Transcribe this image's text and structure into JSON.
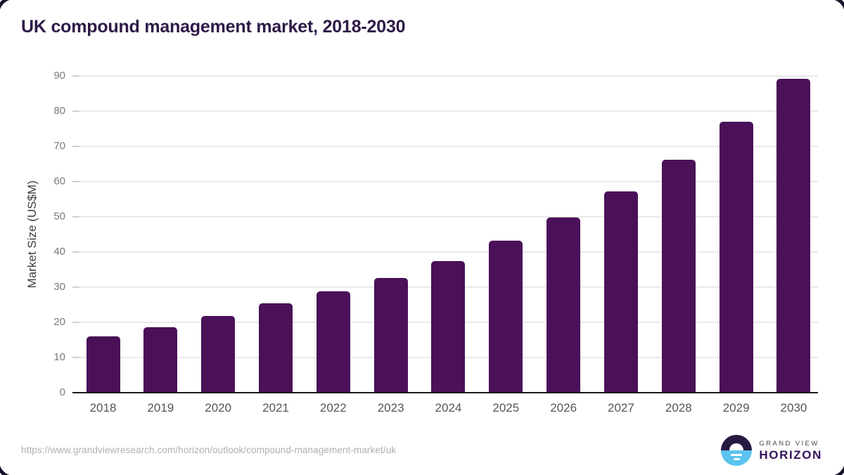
{
  "title": "UK compound management market, 2018-2030",
  "y_axis": {
    "label": "Market Size (US$M)",
    "ticks": [
      0,
      10,
      20,
      30,
      40,
      50,
      60,
      70,
      80,
      90
    ]
  },
  "chart_data": {
    "type": "bar",
    "title": "UK compound management market, 2018-2030",
    "categories": [
      "2018",
      "2019",
      "2020",
      "2021",
      "2022",
      "2023",
      "2024",
      "2025",
      "2026",
      "2027",
      "2028",
      "2029",
      "2030"
    ],
    "values": [
      16.0,
      18.6,
      21.8,
      25.4,
      28.8,
      32.7,
      37.5,
      43.2,
      49.8,
      57.3,
      66.3,
      77.1,
      89.3
    ],
    "xlabel": "",
    "ylabel": "Market Size (US$M)",
    "ylim": [
      0,
      90
    ],
    "grid": true,
    "legend": false,
    "bar_color": "#4A1158"
  },
  "colors": {
    "title_text": "#2E1A47",
    "bar": "#4A1158",
    "axis_line": "#1b1b1b",
    "gridline": "#e9e9e9",
    "y_tick_label": "#7a7a7a",
    "x_tick_label": "#555555",
    "source_url_text": "#b0b0b0",
    "logo_dark": "#261A41",
    "logo_blue": "#5BC3EE",
    "logo_horizon_text": "#33125A"
  },
  "footer": {
    "source_url": "https://www.grandviewresearch.com/horizon/outlook/compound-management-market/uk",
    "logo": {
      "line1": "GRAND VIEW",
      "line2": "HORIZON"
    }
  }
}
